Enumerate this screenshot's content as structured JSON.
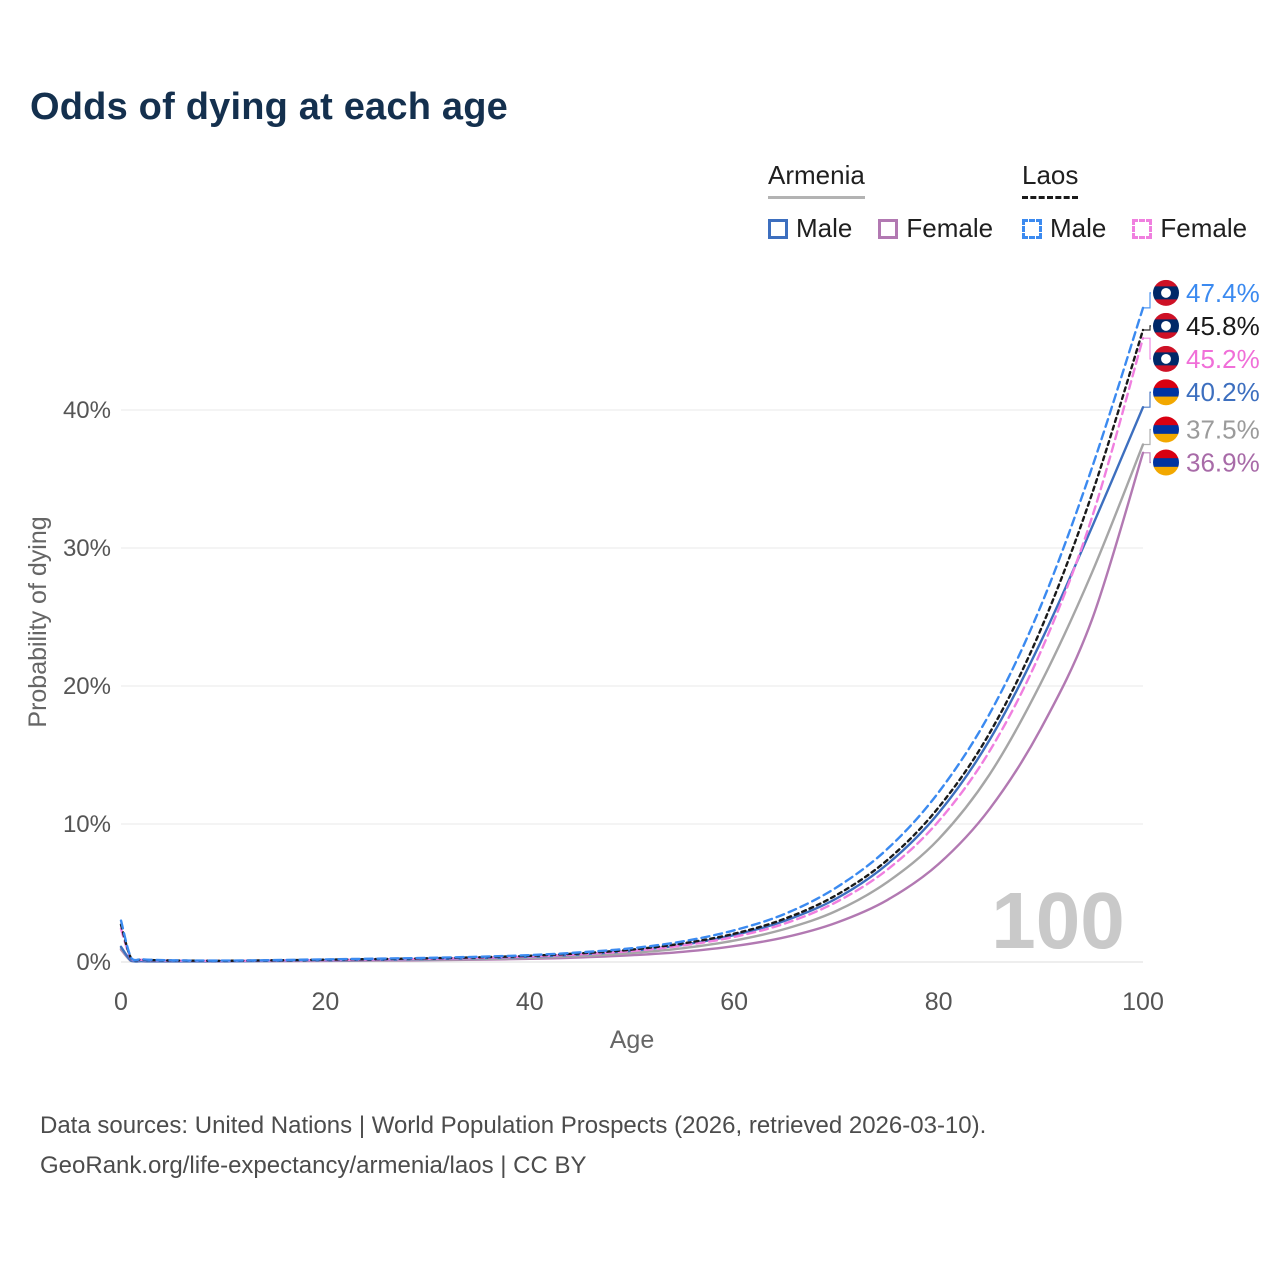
{
  "title": "Odds of dying at each age",
  "legend": {
    "groups": [
      {
        "label": "Armenia",
        "line_style": "solid",
        "line_color": "#b3b3b3",
        "items": [
          {
            "label": "Male",
            "color": "#3d6fbf",
            "dashed": false
          },
          {
            "label": "Female",
            "color": "#b279b2",
            "dashed": false
          }
        ]
      },
      {
        "label": "Laos",
        "line_style": "dashed",
        "line_color": "#1a1a1a",
        "items": [
          {
            "label": "Male",
            "color": "#3b8af0",
            "dashed": true
          },
          {
            "label": "Female",
            "color": "#f07fdf",
            "dashed": true
          }
        ]
      }
    ]
  },
  "flags": {
    "armenia": {
      "colors": [
        "#d90012",
        "#0033a0",
        "#f2a800"
      ],
      "fractions": [
        0.3333,
        0.3334,
        0.3333
      ]
    },
    "laos": {
      "colors": [
        "#ce1126",
        "#002868",
        "#ce1126"
      ],
      "fractions": [
        0.25,
        0.5,
        0.25
      ],
      "disc": "#ffffff"
    }
  },
  "chart_data": {
    "type": "line",
    "title": "Odds of dying at each age",
    "xlabel": "Age",
    "ylabel": "Probability of dying",
    "xlim": [
      0,
      100
    ],
    "ylim_percent": [
      0,
      48
    ],
    "grid": "horizontal",
    "legend_position": "top-right",
    "watermark": "100",
    "watermark_color": "#c9c9c9",
    "x_ticks": [
      0,
      20,
      40,
      60,
      80,
      100
    ],
    "x_tick_labels": [
      "0",
      "20",
      "40",
      "60",
      "80",
      "100"
    ],
    "y_ticks": [
      0,
      10,
      20,
      30,
      40
    ],
    "y_tick_labels": [
      "0%",
      "10%",
      "20%",
      "30%",
      "40%"
    ],
    "x": [
      0,
      1,
      2,
      3,
      5,
      10,
      15,
      20,
      25,
      30,
      35,
      40,
      45,
      50,
      55,
      60,
      65,
      70,
      75,
      80,
      85,
      90,
      95,
      100
    ],
    "series": [
      {
        "name": "Laos Male",
        "country": "Laos",
        "sex": "Male",
        "color": "#3b8af0",
        "dash": "8 5",
        "flag": "laos",
        "end_label": "47.4%",
        "label_color": "#3b8af0",
        "values": [
          3.0,
          0.28,
          0.2,
          0.16,
          0.12,
          0.1,
          0.14,
          0.19,
          0.24,
          0.3,
          0.38,
          0.5,
          0.7,
          1.0,
          1.5,
          2.3,
          3.5,
          5.4,
          8.2,
          12.3,
          18.0,
          25.8,
          35.8,
          47.4
        ]
      },
      {
        "name": "Laos Both sexes",
        "country": "Laos",
        "sex": "Both",
        "color": "#1a1a1a",
        "dash": "4 4",
        "flag": "laos",
        "end_label": "45.8%",
        "label_color": "#1a1a1a",
        "values": [
          2.7,
          0.25,
          0.18,
          0.14,
          0.11,
          0.09,
          0.12,
          0.17,
          0.21,
          0.27,
          0.34,
          0.45,
          0.63,
          0.9,
          1.35,
          2.05,
          3.15,
          4.85,
          7.4,
          11.2,
          16.6,
          24.1,
          33.9,
          45.8
        ]
      },
      {
        "name": "Laos Female",
        "country": "Laos",
        "sex": "Female",
        "color": "#f07fdf",
        "dash": "8 5",
        "flag": "laos",
        "end_label": "45.2%",
        "label_color": "#f06fd8",
        "values": [
          2.4,
          0.22,
          0.16,
          0.12,
          0.1,
          0.08,
          0.11,
          0.14,
          0.18,
          0.23,
          0.3,
          0.4,
          0.56,
          0.8,
          1.2,
          1.82,
          2.8,
          4.35,
          6.7,
          10.2,
          15.3,
          22.5,
          32.2,
          45.2
        ]
      },
      {
        "name": "Armenia Male",
        "country": "Armenia",
        "sex": "Male",
        "color": "#3d6fbf",
        "dash": "",
        "flag": "armenia",
        "end_label": "40.2%",
        "label_color": "#3d6fbf",
        "values": [
          1.1,
          0.09,
          0.06,
          0.05,
          0.05,
          0.05,
          0.08,
          0.12,
          0.16,
          0.21,
          0.28,
          0.38,
          0.55,
          0.82,
          1.25,
          1.95,
          3.0,
          4.6,
          7.1,
          10.8,
          16.1,
          23.2,
          31.5,
          40.2
        ]
      },
      {
        "name": "Armenia Both sexes",
        "country": "Armenia",
        "sex": "Both",
        "color": "#a6a6a6",
        "dash": "",
        "flag": "armenia",
        "end_label": "37.5%",
        "label_color": "#9b9b9b",
        "values": [
          1.0,
          0.08,
          0.055,
          0.045,
          0.045,
          0.045,
          0.07,
          0.1,
          0.13,
          0.17,
          0.22,
          0.3,
          0.44,
          0.65,
          1.0,
          1.55,
          2.4,
          3.7,
          5.8,
          8.9,
          13.6,
          20.2,
          28.2,
          37.5
        ]
      },
      {
        "name": "Armenia Female",
        "country": "Armenia",
        "sex": "Female",
        "color": "#b279b2",
        "dash": "",
        "flag": "armenia",
        "end_label": "36.9%",
        "label_color": "#a86ba8",
        "values": [
          0.9,
          0.07,
          0.05,
          0.04,
          0.04,
          0.04,
          0.055,
          0.08,
          0.1,
          0.13,
          0.17,
          0.23,
          0.33,
          0.49,
          0.74,
          1.15,
          1.8,
          2.85,
          4.5,
          7.1,
          11.1,
          16.9,
          24.8,
          36.9
        ]
      }
    ]
  },
  "footer": {
    "line1": "Data sources: United Nations | World Population Prospects (2026, retrieved 2026-03-10).",
    "line2": "GeoRank.org/life-expectancy/armenia/laos | CC BY"
  }
}
